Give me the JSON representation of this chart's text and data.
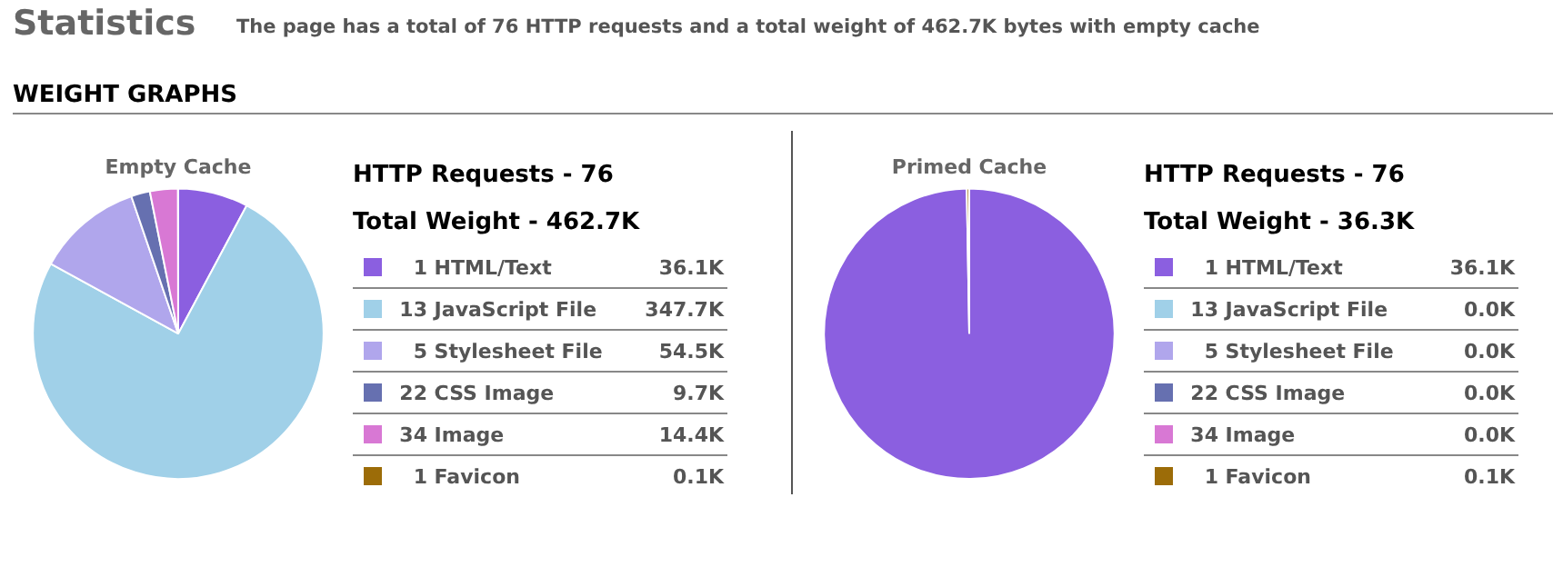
{
  "chart_data": [
    {
      "type": "pie",
      "title": "Empty Cache",
      "annotations": [
        "Statistics",
        "The page has a total of 76 HTTP requests and a total weight of 462.7K bytes with empty cache",
        "WEIGHT GRAPHS",
        "HTTP Requests - 76",
        "Total Weight - 462.7K"
      ],
      "categories": [
        "1 HTML/Text",
        "13 JavaScript File",
        "5 Stylesheet File",
        "22 CSS Image",
        "34 Image",
        "1 Favicon"
      ],
      "values": [
        36.1,
        347.7,
        54.5,
        9.7,
        14.4,
        0.1
      ],
      "value_labels": [
        "36.1K",
        "347.7K",
        "54.5K",
        "9.7K",
        "14.4K",
        "0.1K"
      ],
      "colors": [
        "#8b5fe0",
        "#a0d0e8",
        "#b0a6ec",
        "#6670b0",
        "#d878d4",
        "#9c6c08"
      ],
      "legend": "right"
    },
    {
      "type": "pie",
      "title": "Primed Cache",
      "annotations": [
        "HTTP Requests - 76",
        "Total Weight - 36.3K"
      ],
      "categories": [
        "1 HTML/Text",
        "13 JavaScript File",
        "5 Stylesheet File",
        "22 CSS Image",
        "34 Image",
        "1 Favicon"
      ],
      "values": [
        36.1,
        0.0,
        0.0,
        0.0,
        0.0,
        0.1
      ],
      "value_labels": [
        "36.1K",
        "0.0K",
        "0.0K",
        "0.0K",
        "0.0K",
        "0.1K"
      ],
      "colors": [
        "#8b5fe0",
        "#a0d0e8",
        "#b0a6ec",
        "#6670b0",
        "#d878d4",
        "#9c6c08"
      ],
      "legend": "right"
    }
  ]
}
